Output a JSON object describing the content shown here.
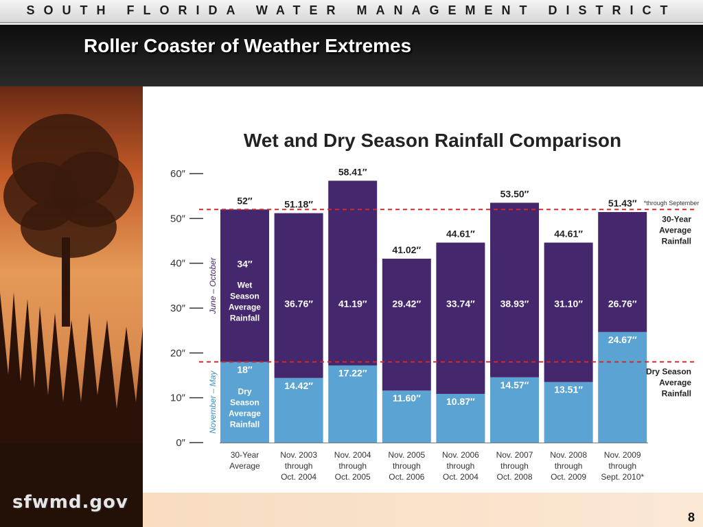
{
  "header": {
    "district_name": "SOUTH FLORIDA WATER MANAGEMENT DISTRICT"
  },
  "slide": {
    "title": "Roller Coaster of Weather Extremes",
    "page_number": "8"
  },
  "logo": {
    "text": "sfwmd.gov"
  },
  "colors": {
    "wet": "#45276e",
    "dry": "#5aa3d2",
    "reference_line": "#d12a2a"
  },
  "chart_data": {
    "type": "bar",
    "stacked": true,
    "title": "Wet and Dry Season Rainfall Comparison",
    "categories": [
      [
        "30-Year",
        "Average"
      ],
      [
        "Nov. 2003",
        "through",
        "Oct. 2004"
      ],
      [
        "Nov. 2004",
        "through",
        "Oct. 2005"
      ],
      [
        "Nov. 2005",
        "through",
        "Oct. 2006"
      ],
      [
        "Nov. 2006",
        "through",
        "Oct. 2004"
      ],
      [
        "Nov. 2007",
        "through",
        "Oct. 2008"
      ],
      [
        "Nov. 2008",
        "through",
        "Oct. 2009"
      ],
      [
        "Nov. 2009",
        "through",
        "Sept. 2010*"
      ]
    ],
    "series": [
      {
        "values": [
          18,
          14.42,
          17.22,
          11.6,
          10.87,
          14.57,
          13.51,
          24.67
        ],
        "labels": [
          "18″",
          "14.42″",
          "17.22″",
          "11.60″",
          "10.87″",
          "14.57″",
          "13.51″",
          "24.67″"
        ]
      },
      {
        "values": [
          34,
          36.76,
          41.19,
          29.42,
          33.74,
          38.93,
          31.1,
          26.76
        ],
        "labels": [
          "34″",
          "36.76″",
          "41.19″",
          "29.42″",
          "33.74″",
          "38.93″",
          "31.10″",
          "26.76″"
        ]
      }
    ],
    "totals": [
      52,
      51.18,
      58.41,
      41.02,
      44.61,
      53.5,
      44.61,
      51.43
    ],
    "total_labels": [
      "52″",
      "51.18″",
      "58.41″",
      "41.02″",
      "44.61″",
      "53.50″",
      "44.61″",
      "51.43″"
    ],
    "first_bar_text": {
      "wet": [
        "Wet",
        "Season",
        "Average",
        "Rainfall"
      ],
      "dry": [
        "Dry",
        "Season",
        "Average",
        "Rainfall"
      ]
    },
    "y_ticks": [
      0,
      10,
      20,
      30,
      40,
      50,
      60
    ],
    "y_tick_labels": [
      "0″",
      "10″",
      "20″",
      "30″",
      "40″",
      "50″",
      "60″"
    ],
    "ylim": [
      0,
      60
    ],
    "side_labels": {
      "wet": "June – October",
      "dry": "November – May"
    },
    "reference_lines": [
      {
        "value": 52,
        "label": [
          "30-Year",
          "Average",
          "Rainfall"
        ]
      },
      {
        "value": 18,
        "label": [
          "Dry Season",
          "Average",
          "Rainfall"
        ]
      }
    ],
    "footnote": "*through September",
    "grid": false,
    "legend": "none"
  }
}
